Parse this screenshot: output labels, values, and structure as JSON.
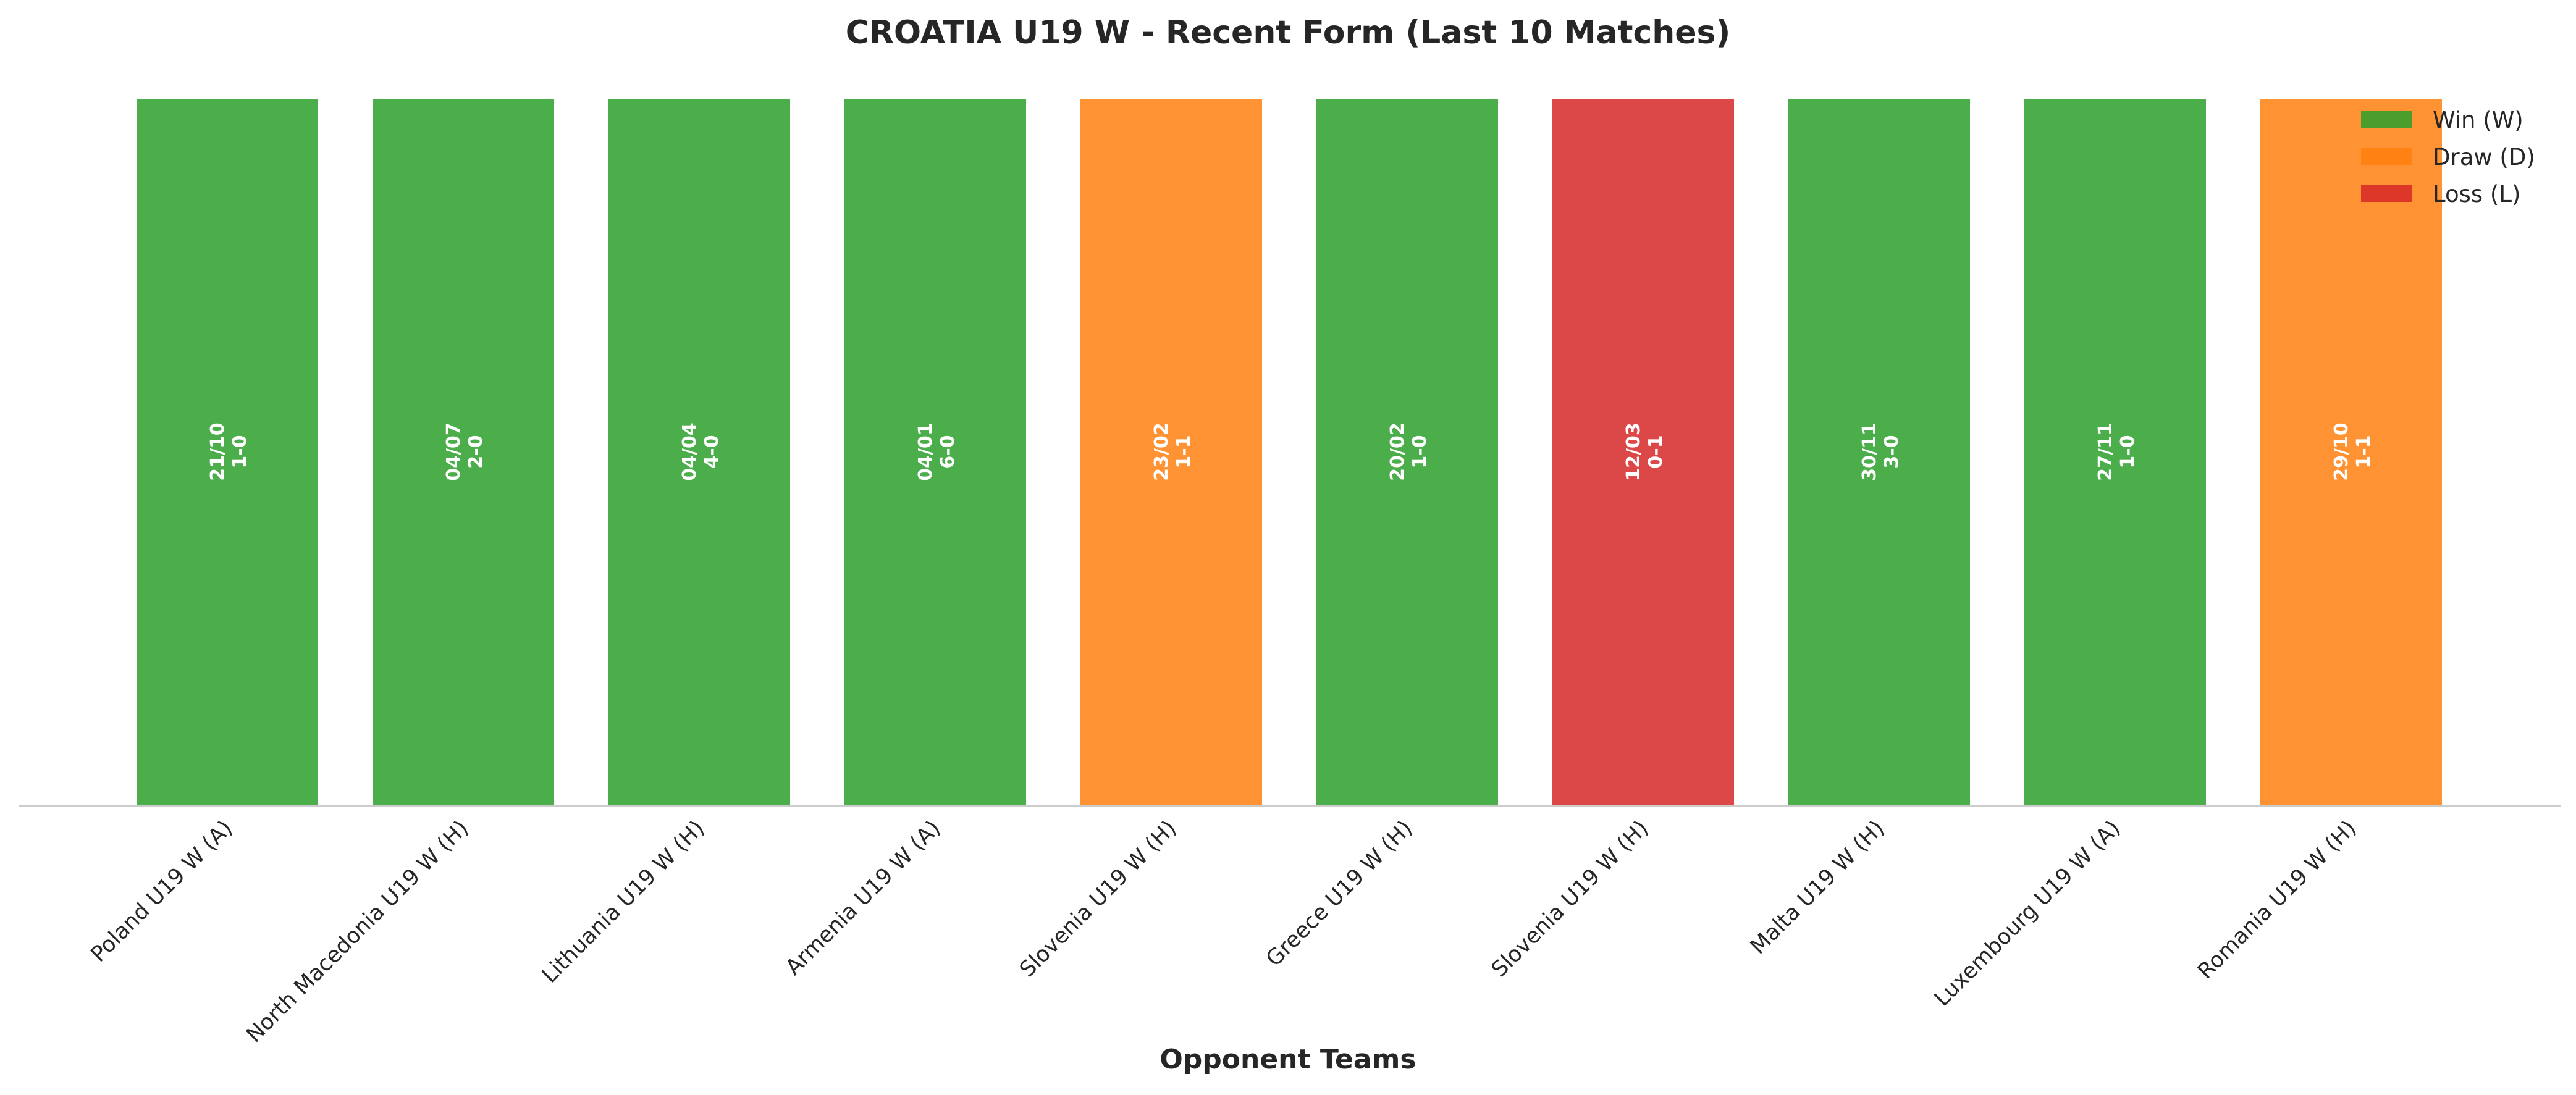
{
  "chart_data": {
    "type": "bar",
    "title": "CROATIA U19 W - Recent Form (Last 10 Matches)",
    "xlabel": "Opponent Teams",
    "ylabel": "",
    "grid": false,
    "legend_placement": "top-right",
    "categories": [
      "Poland U19 W (A)",
      "North Macedonia U19 W (H)",
      "Lithuania U19 W (H)",
      "Armenia U19 W (A)",
      "Slovenia U19 W (H)",
      "Greece U19 W (H)",
      "Slovenia U19 W (H)",
      "Malta U19 W (H)",
      "Luxembourg U19 W (A)",
      "Romania U19 W (H)"
    ],
    "values": [
      1,
      1,
      1,
      1,
      1,
      1,
      1,
      1,
      1,
      1
    ],
    "results": [
      "W",
      "W",
      "W",
      "W",
      "D",
      "W",
      "L",
      "W",
      "W",
      "D"
    ],
    "dates": [
      "21/10",
      "04/07",
      "04/04",
      "04/01",
      "23/02",
      "20/02",
      "12/03",
      "30/11",
      "27/11",
      "29/10"
    ],
    "scores": [
      "1-0",
      "2-0",
      "4-0",
      "6-0",
      "1-1",
      "1-0",
      "0-1",
      "3-0",
      "1-0",
      "1-1"
    ],
    "legend": [
      {
        "key": "W",
        "label": "Win (W)",
        "color": "#2ca02c"
      },
      {
        "key": "D",
        "label": "Draw (D)",
        "color": "#ff7f0e"
      },
      {
        "key": "L",
        "label": "Loss (L)",
        "color": "#d62728"
      }
    ],
    "colors": {
      "W": "#2ca02c",
      "D": "#ff7f0e",
      "L": "#d62728"
    }
  }
}
